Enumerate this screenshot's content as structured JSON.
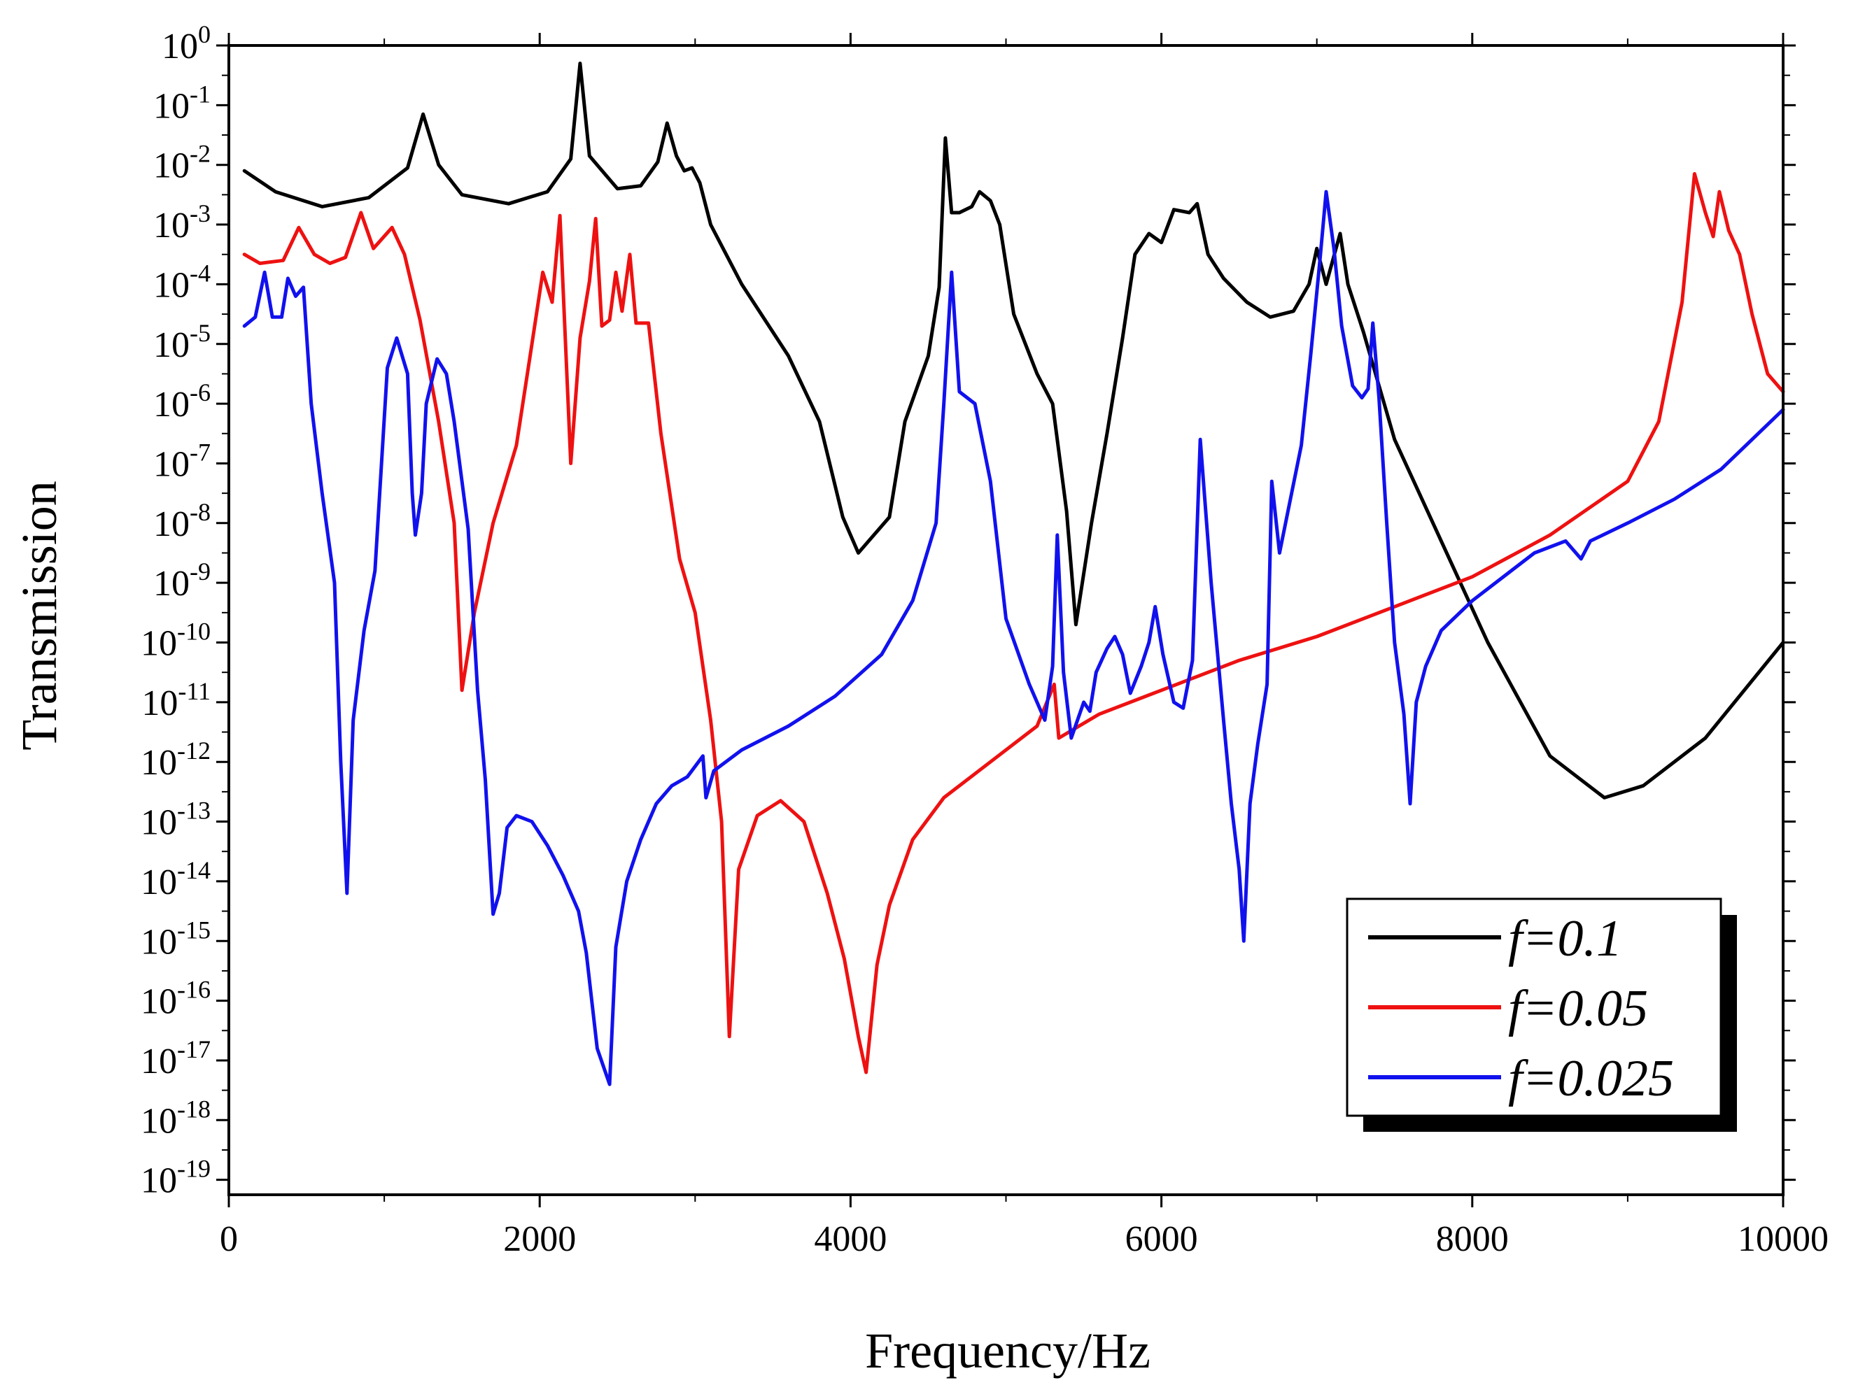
{
  "chart_data": {
    "type": "line",
    "title": "",
    "xlabel": "Frequency/Hz",
    "ylabel": "Transmission",
    "xlim": [
      0,
      10000
    ],
    "ylim_log10": [
      -19.25,
      0
    ],
    "yscale": "log",
    "x_ticks": [
      0,
      2000,
      4000,
      6000,
      8000,
      10000
    ],
    "x_tick_labels": [
      "0",
      "2000",
      "4000",
      "6000",
      "8000",
      "10000"
    ],
    "y_tick_base": "10",
    "y_tick_exponents": [
      "0",
      "-1",
      "-2",
      "-3",
      "-4",
      "-5",
      "-6",
      "-7",
      "-8",
      "-9",
      "-10",
      "-11",
      "-12",
      "-13",
      "-14",
      "-15",
      "-16",
      "-17",
      "-18",
      "-19"
    ],
    "legend_position": "bottom-right",
    "series": [
      {
        "name": "f=0.1",
        "color": "#000000",
        "points_log10": [
          [
            100,
            -2.1
          ],
          [
            300,
            -2.45
          ],
          [
            600,
            -2.7
          ],
          [
            900,
            -2.55
          ],
          [
            1150,
            -2.05
          ],
          [
            1250,
            -1.15
          ],
          [
            1350,
            -2.0
          ],
          [
            1500,
            -2.5
          ],
          [
            1800,
            -2.65
          ],
          [
            2050,
            -2.45
          ],
          [
            2200,
            -1.9
          ],
          [
            2260,
            -0.3
          ],
          [
            2320,
            -1.85
          ],
          [
            2500,
            -2.4
          ],
          [
            2650,
            -2.35
          ],
          [
            2760,
            -1.95
          ],
          [
            2820,
            -1.3
          ],
          [
            2880,
            -1.85
          ],
          [
            2930,
            -2.1
          ],
          [
            2980,
            -2.05
          ],
          [
            3030,
            -2.3
          ],
          [
            3100,
            -3.0
          ],
          [
            3300,
            -4.0
          ],
          [
            3600,
            -5.2
          ],
          [
            3800,
            -6.3
          ],
          [
            3950,
            -7.9
          ],
          [
            4050,
            -8.5
          ],
          [
            4150,
            -8.2
          ],
          [
            4250,
            -7.9
          ],
          [
            4350,
            -6.3
          ],
          [
            4500,
            -5.2
          ],
          [
            4570,
            -4.05
          ],
          [
            4610,
            -1.55
          ],
          [
            4650,
            -2.8
          ],
          [
            4700,
            -2.8
          ],
          [
            4780,
            -2.7
          ],
          [
            4830,
            -2.45
          ],
          [
            4900,
            -2.6
          ],
          [
            4960,
            -3.0
          ],
          [
            5050,
            -4.5
          ],
          [
            5200,
            -5.5
          ],
          [
            5300,
            -6.0
          ],
          [
            5390,
            -7.8
          ],
          [
            5450,
            -9.7
          ],
          [
            5550,
            -8.0
          ],
          [
            5650,
            -6.5
          ],
          [
            5750,
            -4.9
          ],
          [
            5830,
            -3.5
          ],
          [
            5920,
            -3.15
          ],
          [
            6000,
            -3.3
          ],
          [
            6080,
            -2.75
          ],
          [
            6180,
            -2.8
          ],
          [
            6230,
            -2.65
          ],
          [
            6300,
            -3.5
          ],
          [
            6400,
            -3.9
          ],
          [
            6550,
            -4.3
          ],
          [
            6700,
            -4.55
          ],
          [
            6850,
            -4.45
          ],
          [
            6950,
            -4.0
          ],
          [
            7000,
            -3.4
          ],
          [
            7060,
            -4.0
          ],
          [
            7150,
            -3.15
          ],
          [
            7200,
            -4.0
          ],
          [
            7300,
            -4.8
          ],
          [
            7500,
            -6.6
          ],
          [
            7800,
            -8.3
          ],
          [
            8100,
            -10.0
          ],
          [
            8500,
            -11.9
          ],
          [
            8850,
            -12.6
          ],
          [
            9100,
            -12.4
          ],
          [
            9500,
            -11.6
          ],
          [
            10000,
            -10.0
          ]
        ]
      },
      {
        "name": "f=0.05",
        "color": "#ee1111",
        "points_log10": [
          [
            100,
            -3.5
          ],
          [
            200,
            -3.65
          ],
          [
            350,
            -3.6
          ],
          [
            450,
            -3.05
          ],
          [
            550,
            -3.5
          ],
          [
            650,
            -3.65
          ],
          [
            750,
            -3.55
          ],
          [
            850,
            -2.8
          ],
          [
            930,
            -3.4
          ],
          [
            1050,
            -3.05
          ],
          [
            1130,
            -3.5
          ],
          [
            1230,
            -4.6
          ],
          [
            1350,
            -6.3
          ],
          [
            1450,
            -8.0
          ],
          [
            1500,
            -10.8
          ],
          [
            1580,
            -9.5
          ],
          [
            1700,
            -8.0
          ],
          [
            1850,
            -6.7
          ],
          [
            1950,
            -5.0
          ],
          [
            2020,
            -3.8
          ],
          [
            2080,
            -4.3
          ],
          [
            2130,
            -2.85
          ],
          [
            2200,
            -7.0
          ],
          [
            2260,
            -4.9
          ],
          [
            2320,
            -3.95
          ],
          [
            2360,
            -2.9
          ],
          [
            2400,
            -4.7
          ],
          [
            2450,
            -4.6
          ],
          [
            2490,
            -3.8
          ],
          [
            2530,
            -4.45
          ],
          [
            2580,
            -3.5
          ],
          [
            2620,
            -4.65
          ],
          [
            2700,
            -4.65
          ],
          [
            2780,
            -6.5
          ],
          [
            2900,
            -8.6
          ],
          [
            3000,
            -9.5
          ],
          [
            3100,
            -11.3
          ],
          [
            3170,
            -13.0
          ],
          [
            3220,
            -16.6
          ],
          [
            3280,
            -13.8
          ],
          [
            3400,
            -12.9
          ],
          [
            3550,
            -12.65
          ],
          [
            3700,
            -13.0
          ],
          [
            3850,
            -14.2
          ],
          [
            3960,
            -15.3
          ],
          [
            4050,
            -16.6
          ],
          [
            4100,
            -17.2
          ],
          [
            4170,
            -15.4
          ],
          [
            4250,
            -14.4
          ],
          [
            4400,
            -13.3
          ],
          [
            4600,
            -12.6
          ],
          [
            4900,
            -12.0
          ],
          [
            5200,
            -11.4
          ],
          [
            5310,
            -10.7
          ],
          [
            5340,
            -11.6
          ],
          [
            5600,
            -11.2
          ],
          [
            6000,
            -10.8
          ],
          [
            6500,
            -10.3
          ],
          [
            7000,
            -9.9
          ],
          [
            7500,
            -9.4
          ],
          [
            8000,
            -8.9
          ],
          [
            8500,
            -8.2
          ],
          [
            9000,
            -7.3
          ],
          [
            9200,
            -6.3
          ],
          [
            9350,
            -4.3
          ],
          [
            9430,
            -2.15
          ],
          [
            9500,
            -2.8
          ],
          [
            9550,
            -3.2
          ],
          [
            9590,
            -2.45
          ],
          [
            9650,
            -3.1
          ],
          [
            9720,
            -3.5
          ],
          [
            9800,
            -4.5
          ],
          [
            9900,
            -5.5
          ],
          [
            10000,
            -5.8
          ]
        ]
      },
      {
        "name": "f=0.025",
        "color": "#1111ee",
        "points_log10": [
          [
            100,
            -4.7
          ],
          [
            170,
            -4.55
          ],
          [
            230,
            -3.8
          ],
          [
            280,
            -4.55
          ],
          [
            340,
            -4.55
          ],
          [
            380,
            -3.9
          ],
          [
            430,
            -4.2
          ],
          [
            480,
            -4.05
          ],
          [
            530,
            -6.0
          ],
          [
            600,
            -7.5
          ],
          [
            680,
            -9.0
          ],
          [
            720,
            -12.0
          ],
          [
            760,
            -14.2
          ],
          [
            800,
            -11.3
          ],
          [
            870,
            -9.8
          ],
          [
            940,
            -8.8
          ],
          [
            1020,
            -5.4
          ],
          [
            1080,
            -4.9
          ],
          [
            1150,
            -5.5
          ],
          [
            1180,
            -7.5
          ],
          [
            1200,
            -8.2
          ],
          [
            1240,
            -7.5
          ],
          [
            1270,
            -6.0
          ],
          [
            1340,
            -5.25
          ],
          [
            1400,
            -5.5
          ],
          [
            1450,
            -6.3
          ],
          [
            1540,
            -8.1
          ],
          [
            1600,
            -10.8
          ],
          [
            1650,
            -12.3
          ],
          [
            1700,
            -14.55
          ],
          [
            1740,
            -14.2
          ],
          [
            1790,
            -13.1
          ],
          [
            1850,
            -12.9
          ],
          [
            1950,
            -13.0
          ],
          [
            2050,
            -13.4
          ],
          [
            2150,
            -13.9
          ],
          [
            2250,
            -14.5
          ],
          [
            2300,
            -15.2
          ],
          [
            2370,
            -16.8
          ],
          [
            2450,
            -17.4
          ],
          [
            2490,
            -15.1
          ],
          [
            2560,
            -14.0
          ],
          [
            2650,
            -13.3
          ],
          [
            2750,
            -12.7
          ],
          [
            2850,
            -12.4
          ],
          [
            2950,
            -12.25
          ],
          [
            3050,
            -11.9
          ],
          [
            3070,
            -12.6
          ],
          [
            3120,
            -12.15
          ],
          [
            3300,
            -11.8
          ],
          [
            3600,
            -11.4
          ],
          [
            3900,
            -10.9
          ],
          [
            4200,
            -10.2
          ],
          [
            4400,
            -9.3
          ],
          [
            4550,
            -8.0
          ],
          [
            4600,
            -6.0
          ],
          [
            4650,
            -3.8
          ],
          [
            4700,
            -5.8
          ],
          [
            4800,
            -6.0
          ],
          [
            4900,
            -7.3
          ],
          [
            5000,
            -9.6
          ],
          [
            5150,
            -10.7
          ],
          [
            5250,
            -11.3
          ],
          [
            5300,
            -10.4
          ],
          [
            5330,
            -8.2
          ],
          [
            5370,
            -10.5
          ],
          [
            5420,
            -11.6
          ],
          [
            5500,
            -11.0
          ],
          [
            5540,
            -11.15
          ],
          [
            5580,
            -10.5
          ],
          [
            5650,
            -10.1
          ],
          [
            5700,
            -9.9
          ],
          [
            5750,
            -10.2
          ],
          [
            5800,
            -10.85
          ],
          [
            5870,
            -10.4
          ],
          [
            5920,
            -10.0
          ],
          [
            5960,
            -9.4
          ],
          [
            6010,
            -10.2
          ],
          [
            6080,
            -11.0
          ],
          [
            6140,
            -11.1
          ],
          [
            6200,
            -10.3
          ],
          [
            6250,
            -6.6
          ],
          [
            6320,
            -9.0
          ],
          [
            6400,
            -11.3
          ],
          [
            6450,
            -12.7
          ],
          [
            6500,
            -13.8
          ],
          [
            6530,
            -15.0
          ],
          [
            6570,
            -12.7
          ],
          [
            6620,
            -11.7
          ],
          [
            6680,
            -10.7
          ],
          [
            6710,
            -7.3
          ],
          [
            6760,
            -8.5
          ],
          [
            6830,
            -7.6
          ],
          [
            6900,
            -6.7
          ],
          [
            6960,
            -5.2
          ],
          [
            7020,
            -3.6
          ],
          [
            7060,
            -2.45
          ],
          [
            7110,
            -3.4
          ],
          [
            7160,
            -4.7
          ],
          [
            7230,
            -5.7
          ],
          [
            7290,
            -5.9
          ],
          [
            7330,
            -5.75
          ],
          [
            7360,
            -4.65
          ],
          [
            7400,
            -5.9
          ],
          [
            7450,
            -8.0
          ],
          [
            7500,
            -10.0
          ],
          [
            7560,
            -11.2
          ],
          [
            7600,
            -12.7
          ],
          [
            7640,
            -11.0
          ],
          [
            7700,
            -10.4
          ],
          [
            7800,
            -9.8
          ],
          [
            8000,
            -9.3
          ],
          [
            8200,
            -8.9
          ],
          [
            8400,
            -8.5
          ],
          [
            8600,
            -8.3
          ],
          [
            8700,
            -8.6
          ],
          [
            8760,
            -8.3
          ],
          [
            9000,
            -8.0
          ],
          [
            9300,
            -7.6
          ],
          [
            9600,
            -7.1
          ],
          [
            10000,
            -6.1
          ]
        ]
      }
    ]
  }
}
